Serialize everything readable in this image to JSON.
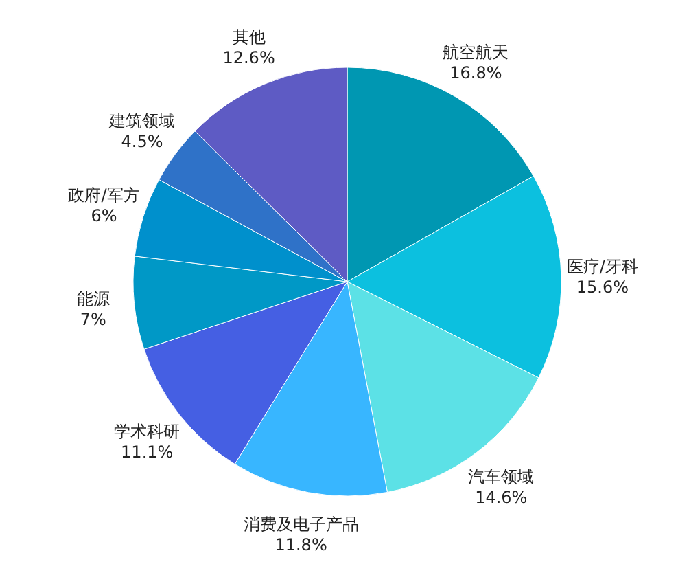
{
  "chart_data": {
    "type": "pie",
    "categories": [
      "航空航天",
      "医疗/牙科",
      "汽车领域",
      "消费及电子产品",
      "学术科研",
      "能源",
      "政府/军方",
      "建筑领域",
      "其他"
    ],
    "values": [
      16.8,
      15.6,
      14.6,
      11.8,
      11.1,
      7,
      6,
      4.5,
      12.6
    ],
    "value_labels": [
      "16.8%",
      "15.6%",
      "14.6%",
      "11.8%",
      "11.1%",
      "7%",
      "6%",
      "4.5%",
      "12.6%"
    ],
    "colors": [
      "#0097b2",
      "#0cc0df",
      "#5ce1e6",
      "#38b6ff",
      "#455fe3",
      "#0098c6",
      "#0090cc",
      "#2f72c8",
      "#5e5bc4"
    ],
    "legend": false
  }
}
